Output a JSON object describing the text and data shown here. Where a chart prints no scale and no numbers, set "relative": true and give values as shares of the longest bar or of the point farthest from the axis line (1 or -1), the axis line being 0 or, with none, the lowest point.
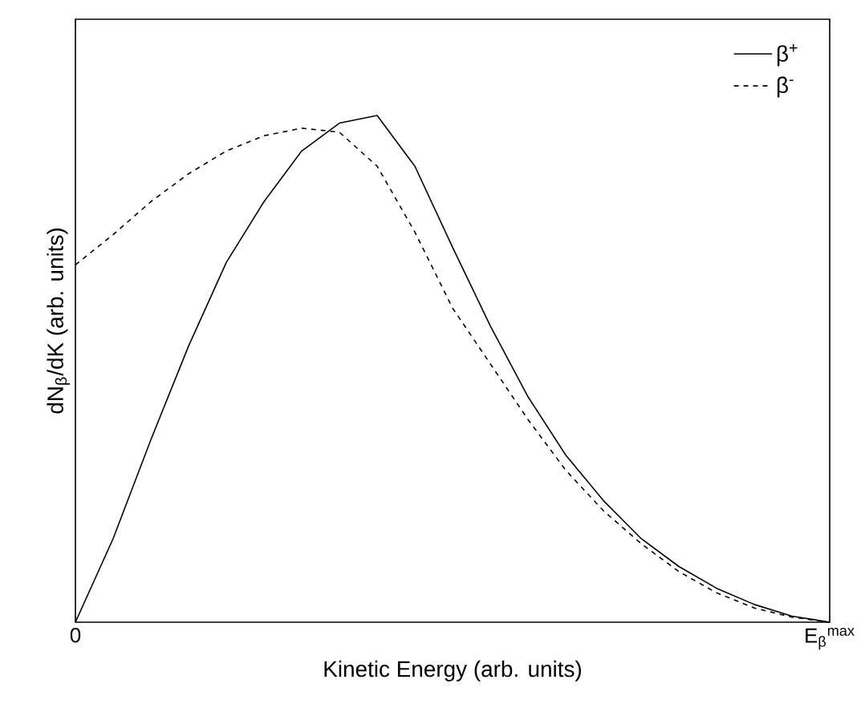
{
  "chart_data": {
    "type": "line",
    "relative": true,
    "xlabel": "Kinetic Energy (arb. units)",
    "ylabel": "dN$_{β}$/dK (arb. units)",
    "categories": [
      "0",
      null,
      null,
      null,
      null,
      null,
      null,
      null,
      null,
      null,
      null,
      null,
      null,
      null,
      null,
      null,
      null,
      null,
      null,
      null,
      "E$_{β}$$^{max}$"
    ],
    "legend": "top right",
    "marker": "none",
    "series": [
      {
        "name": "β$^{+}$",
        "color": "#000000",
        "line_style": "solid",
        "values": [
          0,
          0.165,
          0.36,
          0.545,
          0.71,
          0.83,
          0.93,
          0.985,
          1,
          0.9,
          0.74,
          0.585,
          0.445,
          0.33,
          0.24,
          0.165,
          0.11,
          0.067,
          0.035,
          0.012,
          0
        ]
      },
      {
        "name": "β$^{-}$",
        "color": "#000000",
        "line_style": "dashed",
        "values": [
          0.705,
          0.765,
          0.83,
          0.885,
          0.93,
          0.96,
          0.975,
          0.967,
          0.9,
          0.77,
          0.62,
          0.51,
          0.4,
          0.3,
          0.22,
          0.155,
          0.1,
          0.058,
          0.028,
          0.01,
          0
        ]
      }
    ]
  }
}
